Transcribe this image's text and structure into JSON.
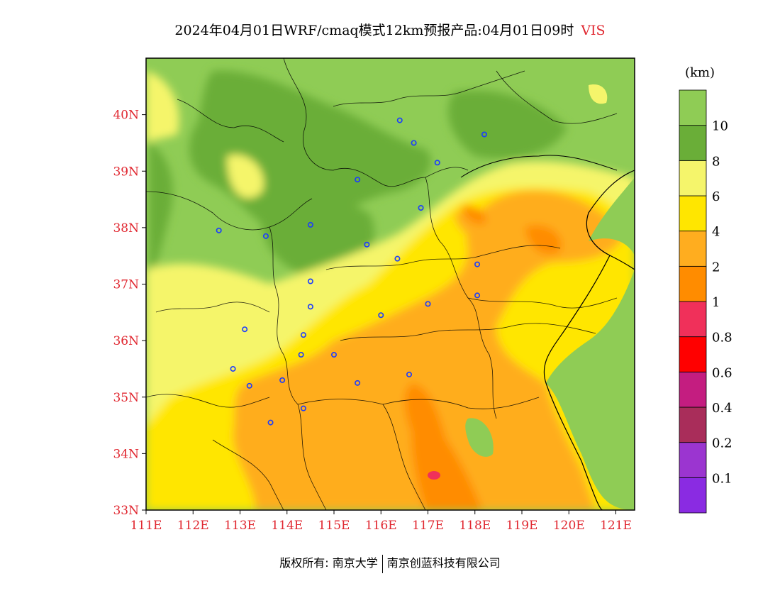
{
  "title": {
    "main": "2024年04月01日WRF/cmaq模式12km预报产品:04月01日09时",
    "variable": "VIS"
  },
  "map": {
    "lon_range": [
      111,
      121.4
    ],
    "lat_range": [
      33,
      41
    ],
    "lon_ticks": [
      "111E",
      "112E",
      "113E",
      "114E",
      "115E",
      "116E",
      "117E",
      "118E",
      "119E",
      "120E",
      "121E"
    ],
    "lat_ticks": [
      "33N",
      "34N",
      "35N",
      "36N",
      "37N",
      "38N",
      "39N",
      "40N"
    ],
    "stations": [
      {
        "lon": 116.4,
        "lat": 39.9
      },
      {
        "lon": 116.7,
        "lat": 39.5
      },
      {
        "lon": 118.2,
        "lat": 39.65
      },
      {
        "lon": 117.2,
        "lat": 39.15
      },
      {
        "lon": 115.5,
        "lat": 38.85
      },
      {
        "lon": 116.85,
        "lat": 38.35
      },
      {
        "lon": 112.55,
        "lat": 37.95
      },
      {
        "lon": 113.55,
        "lat": 37.85
      },
      {
        "lon": 114.5,
        "lat": 38.05
      },
      {
        "lon": 115.7,
        "lat": 37.7
      },
      {
        "lon": 116.35,
        "lat": 37.45
      },
      {
        "lon": 118.05,
        "lat": 37.35
      },
      {
        "lon": 114.5,
        "lat": 37.05
      },
      {
        "lon": 118.05,
        "lat": 36.8
      },
      {
        "lon": 117.0,
        "lat": 36.65
      },
      {
        "lon": 114.5,
        "lat": 36.6
      },
      {
        "lon": 116.0,
        "lat": 36.45
      },
      {
        "lon": 113.1,
        "lat": 36.2
      },
      {
        "lon": 114.35,
        "lat": 36.1
      },
      {
        "lon": 115.0,
        "lat": 35.75
      },
      {
        "lon": 114.3,
        "lat": 35.75
      },
      {
        "lon": 112.85,
        "lat": 35.5
      },
      {
        "lon": 113.9,
        "lat": 35.3
      },
      {
        "lon": 113.2,
        "lat": 35.2
      },
      {
        "lon": 115.5,
        "lat": 35.25
      },
      {
        "lon": 116.6,
        "lat": 35.4
      },
      {
        "lon": 114.35,
        "lat": 34.8
      },
      {
        "lon": 113.65,
        "lat": 34.55
      }
    ]
  },
  "colorbar": {
    "unit": "(km)",
    "colors": [
      "#8a2be2",
      "#9b35d0",
      "#a92d5a",
      "#c41d80",
      "#ff0000",
      "#f0305a",
      "#ff8c00",
      "#ffad1f",
      "#ffe600",
      "#f5f56b",
      "#6aae38",
      "#8fcc55"
    ],
    "labels": [
      "0.1",
      "0.2",
      "0.4",
      "0.6",
      "0.8",
      "1",
      "2",
      "4",
      "6",
      "8",
      "10"
    ]
  },
  "footer": {
    "left": "版权所有: 南京大学",
    "right": "南京创蓝科技有限公司"
  }
}
